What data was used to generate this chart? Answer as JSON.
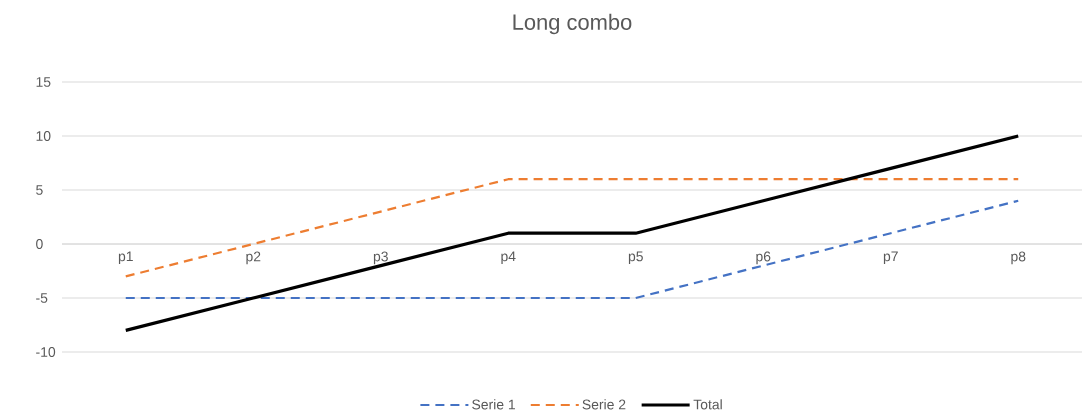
{
  "chart_data": {
    "type": "line",
    "title": "Long combo",
    "categories": [
      "p1",
      "p2",
      "p3",
      "p4",
      "p5",
      "p6",
      "p7",
      "p8"
    ],
    "series": [
      {
        "name": "Serie 1",
        "color": "#4472c4",
        "line_style": "dashed",
        "values": [
          -5,
          -5,
          -5,
          -5,
          -5,
          -2,
          1,
          4
        ]
      },
      {
        "name": "Serie 2",
        "color": "#ed7d31",
        "line_style": "dashed",
        "values": [
          -3,
          0,
          3,
          6,
          6,
          6,
          6,
          6
        ]
      },
      {
        "name": "Total",
        "color": "#000000",
        "line_style": "solid",
        "values": [
          -8,
          -5,
          -2,
          1,
          1,
          4,
          7,
          10
        ]
      }
    ],
    "ylim": [
      -10,
      15
    ],
    "yticks": [
      -10,
      -5,
      0,
      5,
      10,
      15
    ],
    "grid": "y",
    "legend": "bottom",
    "marker": "none"
  }
}
